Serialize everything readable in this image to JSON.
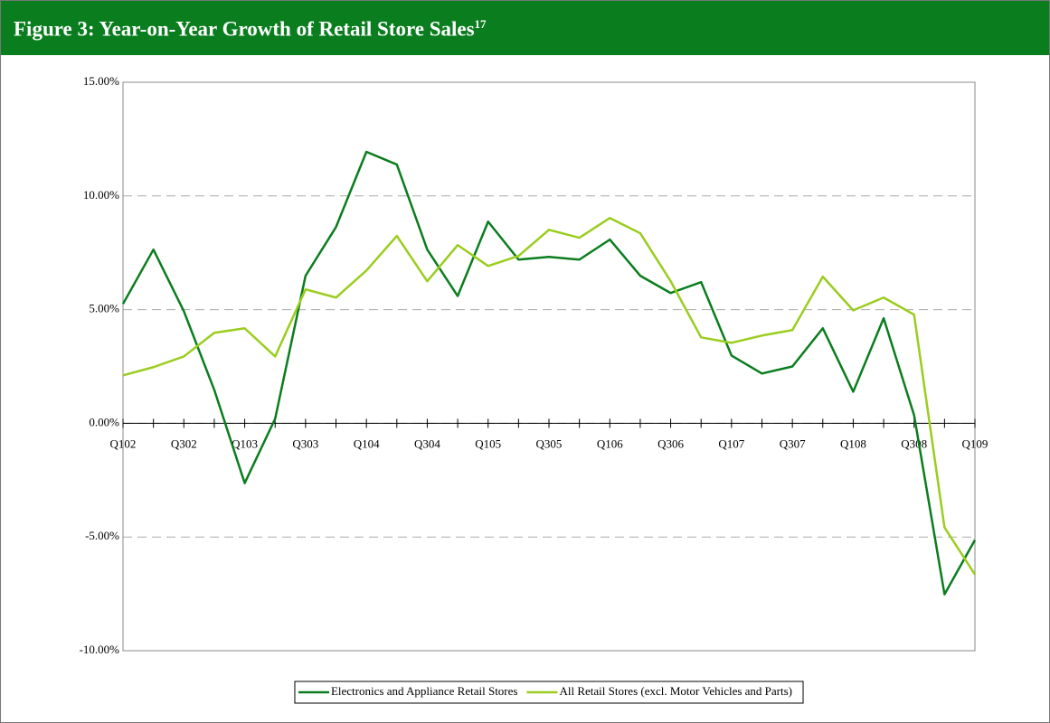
{
  "chart_data": {
    "type": "line",
    "title": "Figure 3: Year-on-Year Growth of Retail Store Sales",
    "title_note": "17",
    "categories": [
      "Q102",
      null,
      "Q302",
      null,
      "Q103",
      null,
      "Q303",
      null,
      "Q104",
      null,
      "Q304",
      null,
      "Q105",
      null,
      "Q305",
      null,
      "Q106",
      null,
      "Q306",
      null,
      "Q107",
      null,
      "Q307",
      null,
      "Q108",
      null,
      "Q308",
      null,
      "Q109"
    ],
    "series": [
      {
        "name": "Electronics and Appliance Retail Stores",
        "color": "#0a7d1e",
        "values": [
          5.25,
          7.64,
          4.93,
          1.47,
          -2.63,
          0.2,
          6.49,
          8.63,
          11.94,
          11.38,
          7.64,
          5.6,
          8.87,
          7.2,
          7.32,
          7.2,
          8.08,
          6.49,
          5.73,
          6.21,
          2.98,
          2.19,
          2.5,
          4.18,
          1.39,
          4.62,
          0.36,
          -7.52,
          -5.13
        ]
      },
      {
        "name": "All Retail Stores (excl. Motor Vehicles and Parts)",
        "color": "#9acd1e",
        "values": [
          2.11,
          2.47,
          2.94,
          3.98,
          4.18,
          2.94,
          5.89,
          5.53,
          6.72,
          8.24,
          6.25,
          7.84,
          6.92,
          7.36,
          8.51,
          8.16,
          9.03,
          8.36,
          6.25,
          3.78,
          3.54,
          3.86,
          4.1,
          6.45,
          4.97,
          5.53,
          4.78,
          -4.58,
          -6.65
        ]
      }
    ],
    "ylim": [
      -10,
      15
    ],
    "yticks": [
      {
        "value": -10,
        "label": "-10.00%"
      },
      {
        "value": -5,
        "label": "-5.00%"
      },
      {
        "value": 0,
        "label": "0.00%"
      },
      {
        "value": 5,
        "label": "5.00%"
      },
      {
        "value": 10,
        "label": "10.00%"
      },
      {
        "value": 15,
        "label": "15.00%"
      }
    ],
    "grid": true,
    "legend": "bottom"
  }
}
